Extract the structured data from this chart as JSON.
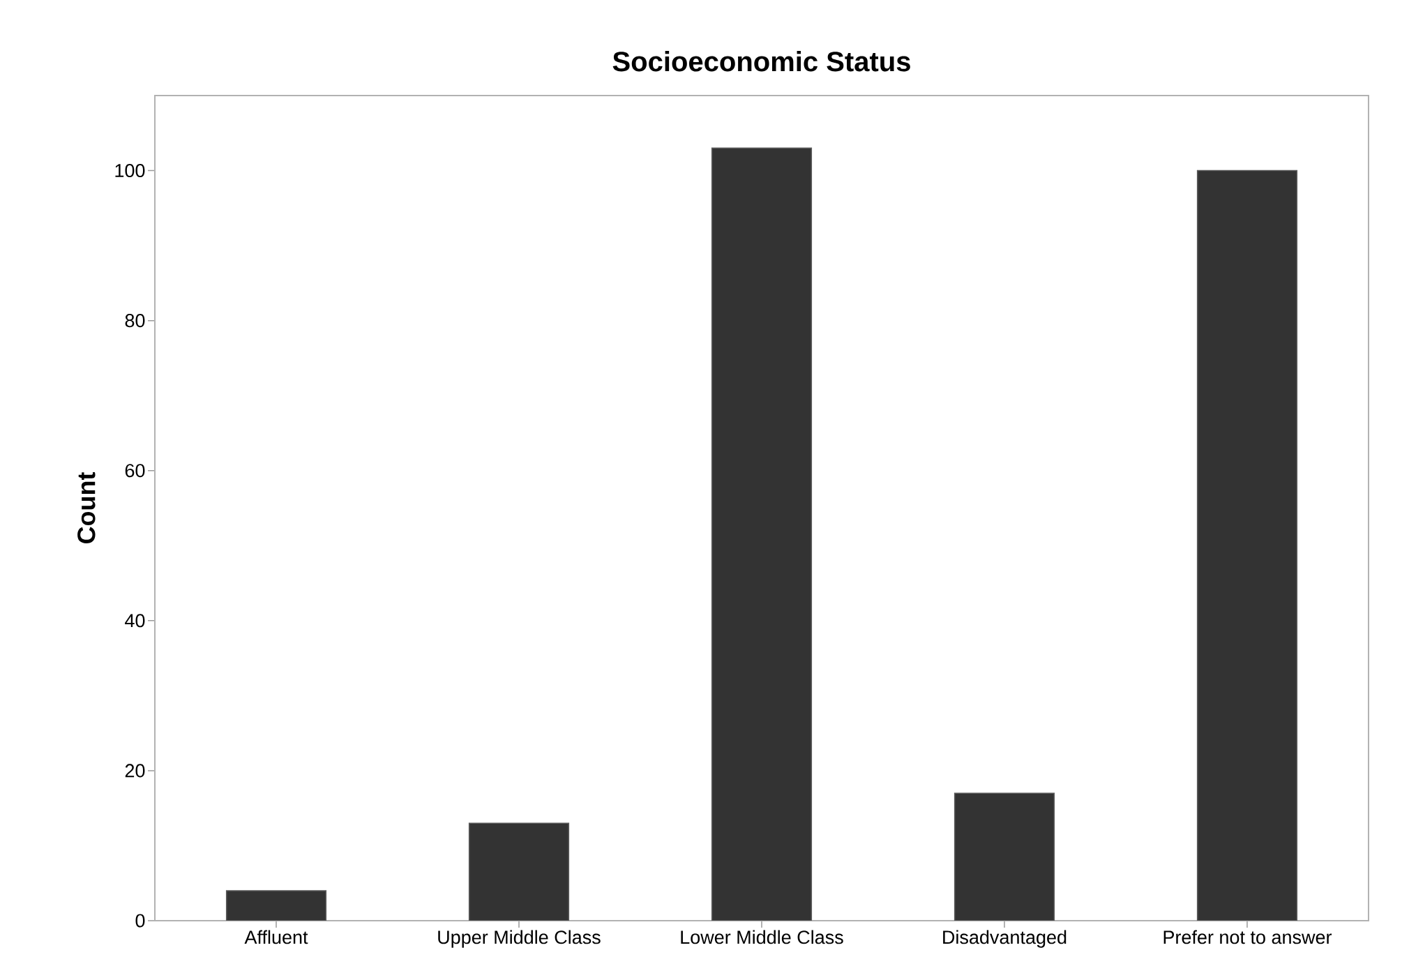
{
  "chart_data": {
    "type": "bar",
    "title": "Socioeconomic Status",
    "ylabel": "Count",
    "categories": [
      "Affluent",
      "Upper Middle Class",
      "Lower Middle Class",
      "Disadvantaged",
      "Prefer not to answer"
    ],
    "values": [
      4,
      13,
      103,
      17,
      100
    ],
    "color": "#333333",
    "ylim": [
      0,
      110
    ],
    "yticks": [
      0,
      20,
      40,
      60,
      80,
      100
    ],
    "grid": false
  }
}
